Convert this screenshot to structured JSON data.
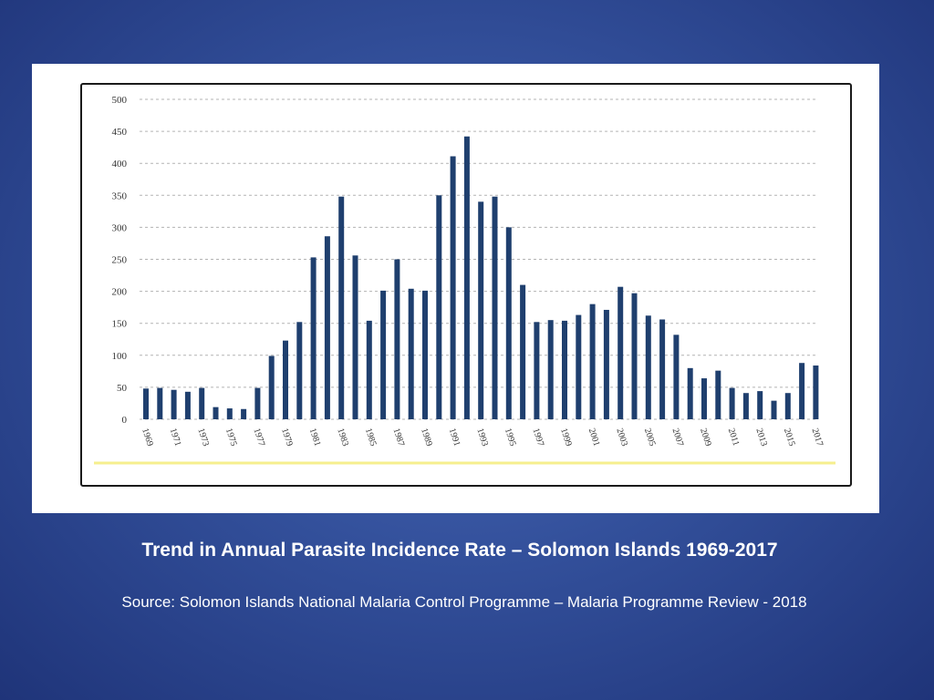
{
  "chart_data": {
    "type": "bar",
    "categories": [
      "1969",
      "1970",
      "1971",
      "1972",
      "1973",
      "1974",
      "1975",
      "1976",
      "1977",
      "1978",
      "1979",
      "1980",
      "1981",
      "1982",
      "1983",
      "1984",
      "1985",
      "1986",
      "1987",
      "1988",
      "1989",
      "1990",
      "1991",
      "1992",
      "1993",
      "1994",
      "1995",
      "1996",
      "1997",
      "1998",
      "1999",
      "2000",
      "2001",
      "2002",
      "2003",
      "2004",
      "2005",
      "2006",
      "2007",
      "2008",
      "2009",
      "2010",
      "2011",
      "2012",
      "2013",
      "2014",
      "2015",
      "2016",
      "2017"
    ],
    "x_tick_labels": [
      "1969",
      "1971",
      "1973",
      "1975",
      "1977",
      "1979",
      "1981",
      "1983",
      "1985",
      "1987",
      "1989",
      "1991",
      "1993",
      "1995",
      "1997",
      "1999",
      "2001",
      "2003",
      "2005",
      "2007",
      "2009",
      "2011",
      "2013",
      "2015",
      "2017"
    ],
    "values": [
      48,
      49,
      46,
      43,
      49,
      19,
      17,
      16,
      49,
      99,
      123,
      152,
      253,
      286,
      348,
      256,
      154,
      201,
      250,
      204,
      201,
      350,
      411,
      442,
      340,
      348,
      300,
      210,
      152,
      155,
      154,
      163,
      180,
      171,
      207,
      197,
      162,
      156,
      132,
      80,
      64,
      76,
      49,
      41,
      44,
      29,
      41,
      88,
      84
    ],
    "ylim": [
      0,
      500
    ],
    "yticks": [
      0,
      50,
      100,
      150,
      200,
      250,
      300,
      350,
      400,
      450,
      500
    ],
    "grid": true,
    "bar_color": "#1f3f6e",
    "grid_color": "#b3b3b3",
    "baseline_color": "#f6ef8e"
  },
  "caption": {
    "title": "Trend in Annual Parasite Incidence Rate – Solomon Islands 1969-2017",
    "source": "Source: Solomon Islands National Malaria Control Programme – Malaria Programme Review - 2018"
  }
}
